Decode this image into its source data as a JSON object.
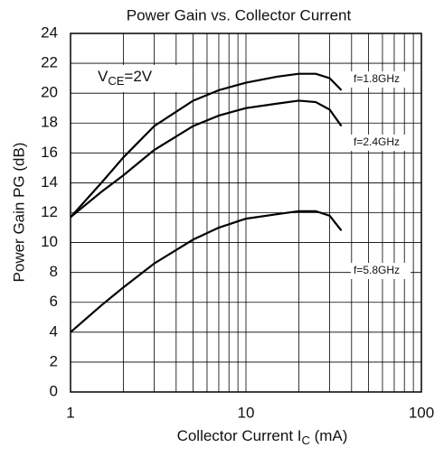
{
  "chart_data": {
    "type": "line",
    "title": "Power Gain vs. Collector Current",
    "x_label": {
      "main": "Collector Current   I",
      "sub": "C",
      "rest": " (mA)"
    },
    "y_label": "Power Gain   PG (dB)",
    "annotation": {
      "main": "V",
      "sub": "CE",
      "rest": "=2V"
    },
    "x": [
      1,
      1.5,
      2,
      3,
      5,
      7,
      10,
      15,
      20,
      25,
      30,
      35
    ],
    "series": [
      {
        "name": "f=1.8GHz",
        "color": "#000000",
        "values": [
          11.7,
          14.0,
          15.7,
          17.8,
          19.5,
          20.2,
          20.7,
          21.1,
          21.3,
          21.3,
          21.0,
          20.2
        ]
      },
      {
        "name": "f=2.4GHz",
        "color": "#000000",
        "values": [
          11.7,
          13.4,
          14.5,
          16.2,
          17.8,
          18.5,
          19.0,
          19.3,
          19.5,
          19.4,
          18.9,
          17.8
        ]
      },
      {
        "name": "f=5.8GHz",
        "color": "#000000",
        "values": [
          4.0,
          5.8,
          7.0,
          8.6,
          10.2,
          11.0,
          11.6,
          11.9,
          12.1,
          12.1,
          11.8,
          10.8
        ]
      }
    ],
    "xlog": true,
    "xlim": [
      1,
      100
    ],
    "xticks": [
      1,
      10,
      100
    ],
    "xminorticks": [
      2,
      3,
      4,
      5,
      6,
      7,
      8,
      9,
      20,
      30,
      40,
      50,
      60,
      70,
      80,
      90
    ],
    "ylim": [
      0,
      24
    ],
    "yticks": [
      0,
      2,
      4,
      6,
      8,
      10,
      12,
      14,
      16,
      18,
      20,
      22,
      24
    ],
    "grid": true
  }
}
